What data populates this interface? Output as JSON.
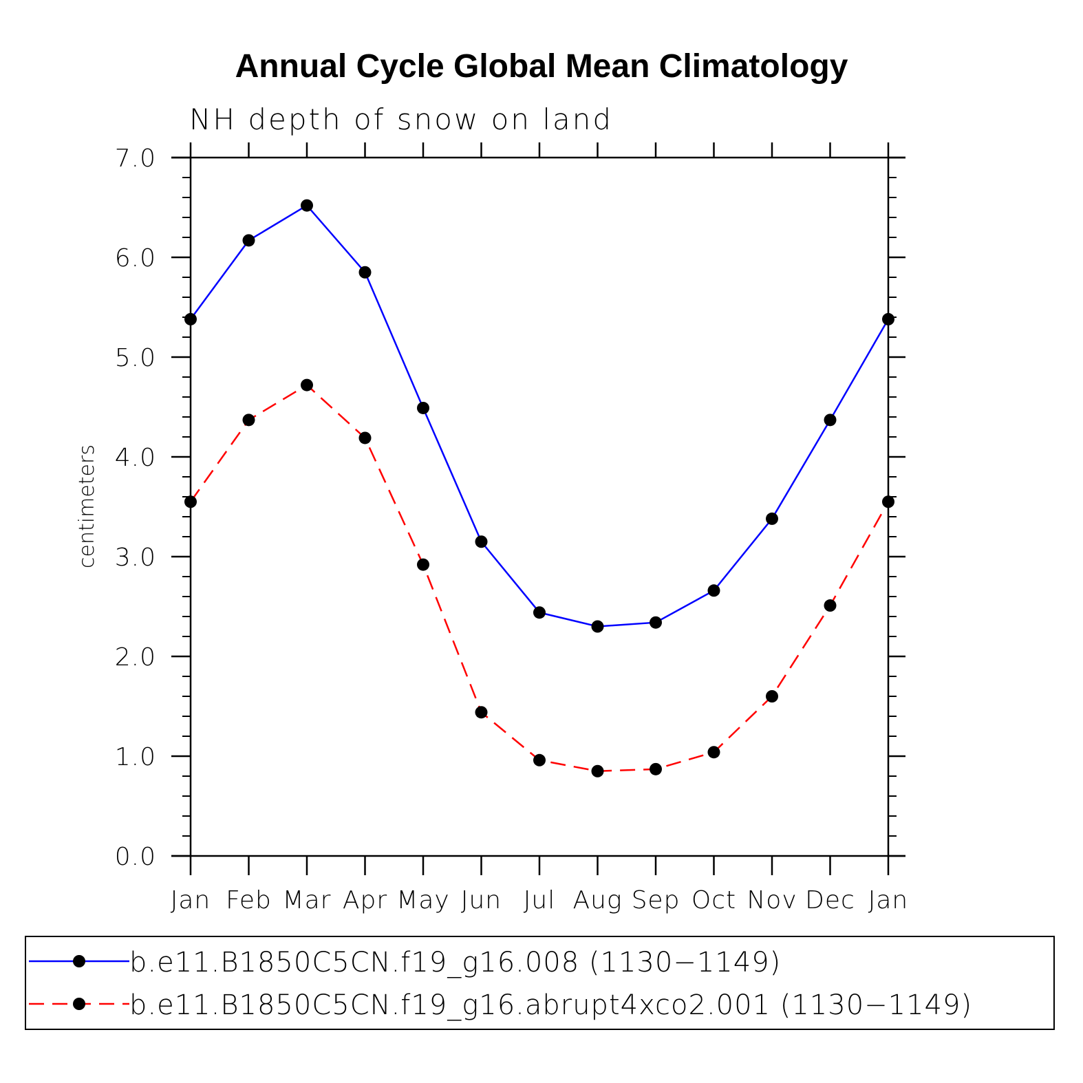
{
  "chart_data": {
    "type": "line",
    "title": "Annual Cycle Global Mean Climatology",
    "subtitle": "NH depth of snow on land",
    "xlabel": "",
    "ylabel": "centimeters",
    "categories": [
      "Jan",
      "Feb",
      "Mar",
      "Apr",
      "May",
      "Jun",
      "Jul",
      "Aug",
      "Sep",
      "Oct",
      "Nov",
      "Dec",
      "Jan"
    ],
    "ylim": [
      0.0,
      7.0
    ],
    "yticks": [
      "0.0",
      "1.0",
      "2.0",
      "3.0",
      "4.0",
      "5.0",
      "6.0",
      "7.0"
    ],
    "grid": false,
    "legend_position": "bottom",
    "series": [
      {
        "name": "b.e11.B1850C5CN.f19_g16.008 (1130−1149)",
        "color": "#0000ff",
        "line_style": "solid",
        "marker": "filled-circle",
        "values": [
          5.38,
          6.17,
          6.52,
          5.85,
          4.49,
          3.15,
          2.44,
          2.3,
          2.34,
          2.66,
          3.38,
          4.37,
          5.38
        ]
      },
      {
        "name": "b.e11.B1850C5CN.f19_g16.abrupt4xco2.001 (1130−1149)",
        "color": "#ff0000",
        "line_style": "dashed",
        "marker": "filled-circle",
        "values": [
          3.55,
          4.37,
          4.72,
          4.19,
          2.92,
          1.44,
          0.96,
          0.85,
          0.87,
          1.04,
          1.6,
          2.51,
          3.55
        ]
      }
    ]
  }
}
